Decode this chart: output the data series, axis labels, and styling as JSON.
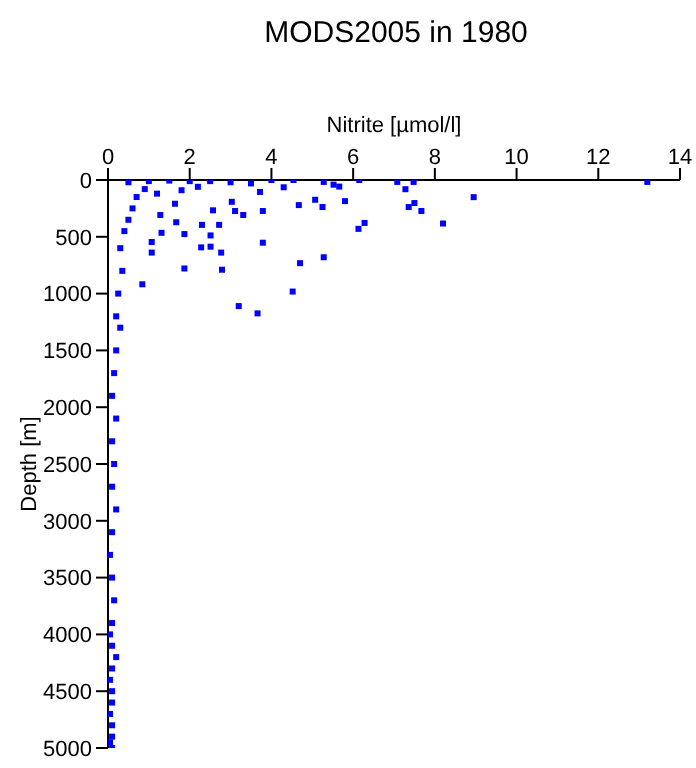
{
  "chart_data": {
    "type": "scatter",
    "title": "MODS2005 in 1980",
    "xlabel": "Nitrite [µmol/l]",
    "ylabel": "Depth [m]",
    "xlim": [
      0,
      14
    ],
    "xticks": [
      0,
      2,
      4,
      6,
      8,
      10,
      12,
      14
    ],
    "ylim": [
      5000,
      0
    ],
    "yticks": [
      0,
      500,
      1000,
      1500,
      2000,
      2500,
      3000,
      3500,
      4000,
      4500,
      5000
    ],
    "marker": "square",
    "series": [
      {
        "color": "#0000ff",
        "x": [
          13.2,
          8.95,
          8.2,
          7.67,
          7.5,
          7.36,
          7.28,
          7.48,
          7.08,
          6.15,
          6.28,
          6.13,
          5.8,
          5.66,
          5.52,
          5.28,
          5.25,
          5.07,
          5.28,
          4.7,
          4.67,
          4.52,
          4.54,
          4.3,
          4.0,
          3.79,
          3.79,
          3.72,
          3.66,
          3.2,
          3.31,
          3.11,
          3.03,
          2.79,
          2.77,
          2.72,
          2.57,
          2.51,
          2.51,
          2.28,
          2.3,
          1.87,
          1.87,
          1.67,
          1.07,
          1.07,
          0.84,
          1.31,
          1.28,
          1.64,
          3.5,
          3.0,
          2.5,
          2.0,
          1.5,
          1.0,
          0.5,
          2.2,
          1.8,
          1.2,
          0.9,
          0.7,
          0.6,
          0.5,
          0.4,
          0.3,
          0.35,
          0.25,
          0.2,
          0.3,
          0.2,
          0.15,
          0.1,
          0.2,
          0.1,
          0.15,
          0.1,
          0.2,
          0.1,
          0.05,
          0.1,
          0.15,
          0.1,
          0.05,
          0.1,
          0.2,
          0.1,
          0.05,
          0.1,
          0.1,
          0.05,
          0.1,
          0.1,
          0.05,
          0.1
        ],
        "values": [
          17,
          151,
          383,
          273,
          203,
          238,
          81,
          17,
          17,
          0,
          378,
          430,
          186,
          58,
          41,
          17,
          238,
          174,
          680,
          732,
          221,
          982,
          0,
          64,
          0,
          552,
          273,
          105,
          1174,
          1110,
          308,
          273,
          192,
          790,
          639,
          395,
          267,
          488,
          587,
          593,
          395,
          779,
          476,
          372,
          639,
          546,
          918,
          465,
          308,
          209,
          30,
          20,
          10,
          10,
          5,
          10,
          20,
          60,
          90,
          120,
          80,
          150,
          250,
          350,
          450,
          600,
          800,
          1000,
          1200,
          1300,
          1500,
          1700,
          1900,
          2100,
          2300,
          2500,
          2700,
          2900,
          3100,
          3300,
          3500,
          3700,
          3900,
          4000,
          4100,
          4200,
          4300,
          4400,
          4500,
          4600,
          4700,
          4800,
          4900,
          4950,
          5000
        ]
      }
    ]
  }
}
